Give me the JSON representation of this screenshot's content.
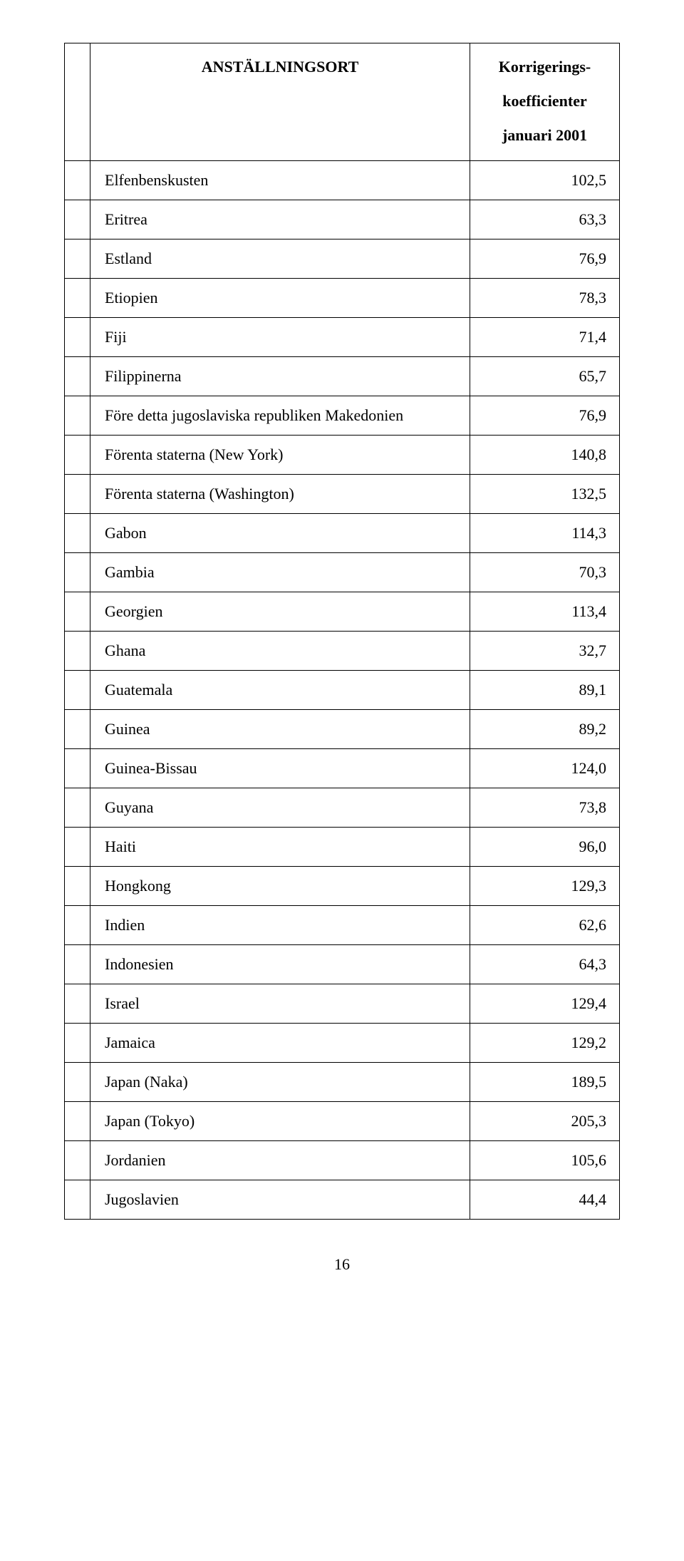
{
  "header": {
    "col1": "ANSTÄLLNINGSORT",
    "col2_line1": "Korrigerings-",
    "col2_line2": "koefficienter",
    "col2_line3": "januari 2001"
  },
  "rows": [
    {
      "label": "Elfenbenskusten",
      "value": "102,5"
    },
    {
      "label": "Eritrea",
      "value": "63,3"
    },
    {
      "label": "Estland",
      "value": "76,9"
    },
    {
      "label": "Etiopien",
      "value": "78,3"
    },
    {
      "label": "Fiji",
      "value": "71,4"
    },
    {
      "label": "Filippinerna",
      "value": "65,7"
    },
    {
      "label": "Före detta jugoslaviska republiken Makedonien",
      "value": "76,9"
    },
    {
      "label": "Förenta staterna (New York)",
      "value": "140,8"
    },
    {
      "label": "Förenta staterna (Washington)",
      "value": "132,5"
    },
    {
      "label": "Gabon",
      "value": "114,3"
    },
    {
      "label": "Gambia",
      "value": "70,3"
    },
    {
      "label": "Georgien",
      "value": "113,4"
    },
    {
      "label": "Ghana",
      "value": "32,7"
    },
    {
      "label": "Guatemala",
      "value": "89,1"
    },
    {
      "label": "Guinea",
      "value": "89,2"
    },
    {
      "label": "Guinea-Bissau",
      "value": "124,0"
    },
    {
      "label": "Guyana",
      "value": "73,8"
    },
    {
      "label": "Haiti",
      "value": "96,0"
    },
    {
      "label": "Hongkong",
      "value": "129,3"
    },
    {
      "label": "Indien",
      "value": "62,6"
    },
    {
      "label": "Indonesien",
      "value": "64,3"
    },
    {
      "label": "Israel",
      "value": "129,4"
    },
    {
      "label": "Jamaica",
      "value": "129,2"
    },
    {
      "label": "Japan (Naka)",
      "value": "189,5"
    },
    {
      "label": "Japan (Tokyo)",
      "value": "205,3"
    },
    {
      "label": "Jordanien",
      "value": "105,6"
    },
    {
      "label": "Jugoslavien",
      "value": "44,4"
    }
  ],
  "page_number": "16"
}
